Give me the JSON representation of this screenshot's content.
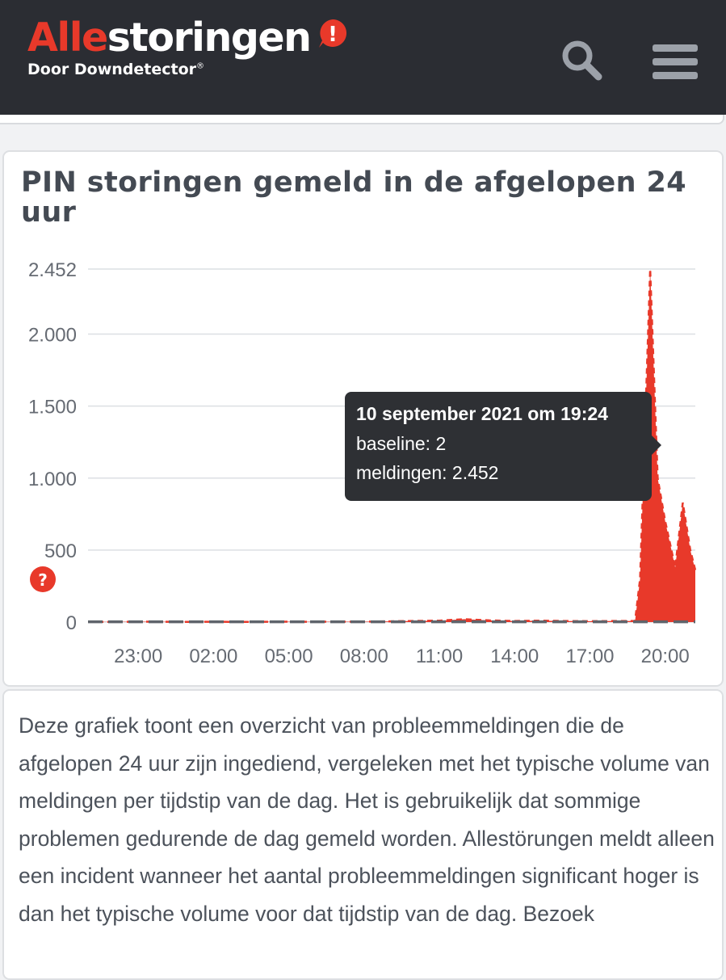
{
  "header": {
    "logo_accent": "Alle",
    "logo_rest": "storingen",
    "logo_badge": "!",
    "tagline": "Door Downdetector",
    "tagline_mark": "®",
    "icons": {
      "search": "search-icon",
      "menu": "hamburger-menu-icon",
      "badge": "exclamation-icon"
    }
  },
  "chart_card": {
    "title": "PIN storingen gemeld in de afgelopen 24 uur",
    "tooltip": {
      "title": "10 september 2021 om 19:24",
      "baseline": "baseline: 2",
      "meldingen": "meldingen: 2.452"
    },
    "help_icon": "question-mark-icon"
  },
  "chart_data": {
    "type": "area",
    "title": "PIN storingen gemeld in de afgelopen 24 uur",
    "xlabel": "",
    "ylabel": "",
    "ylim": [
      0,
      2452
    ],
    "y_ticks": [
      0,
      500,
      1000,
      1500,
      2000,
      2452
    ],
    "y_tick_labels": [
      "0",
      "500",
      "1.000",
      "1.500",
      "2.000",
      "2.452"
    ],
    "x_tick_labels": [
      "23:00",
      "02:00",
      "05:00",
      "08:00",
      "11:00",
      "14:00",
      "17:00",
      "20:00"
    ],
    "x_tick_hours": [
      23,
      26,
      29,
      32,
      35,
      38,
      41,
      44
    ],
    "x_range_hours": [
      21,
      45.2
    ],
    "grid": true,
    "series": [
      {
        "name": "meldingen",
        "color": "#e8392a",
        "x_hours": [
          21,
          22,
          23,
          24,
          25,
          26,
          27,
          28,
          29,
          30,
          31,
          32,
          33,
          34,
          35,
          36,
          37,
          38,
          39,
          40,
          41,
          42,
          42.8,
          43.0,
          43.4,
          43.7,
          44.0,
          44.4,
          44.7,
          45.0,
          45.2
        ],
        "values": [
          2,
          1,
          3,
          2,
          1,
          2,
          1,
          2,
          3,
          2,
          3,
          3,
          5,
          8,
          10,
          20,
          12,
          8,
          10,
          8,
          6,
          8,
          8,
          300,
          2452,
          1000,
          700,
          380,
          830,
          500,
          360
        ]
      },
      {
        "name": "baseline",
        "color": "#5f646b",
        "x_hours": [
          21,
          45.2
        ],
        "values": [
          2,
          2
        ]
      }
    ]
  },
  "description": "Deze grafiek toont een overzicht van probleemmeldingen die de afgelopen 24 uur zijn ingediend, vergeleken met het typische volume van meldingen per tijdstip van de dag. Het is gebruikelijk dat sommige problemen gedurende de dag gemeld worden. Allestörungen meldt alleen een incident wanneer het aantal probleemmeldingen significant hoger is dan het typische volume voor dat tijdstip van de dag. Bezoek",
  "colors": {
    "header_bg": "#2b2d33",
    "brand_red": "#e8392a",
    "icon_grey": "#9ca1a9",
    "tooltip_bg": "#2e3034"
  }
}
